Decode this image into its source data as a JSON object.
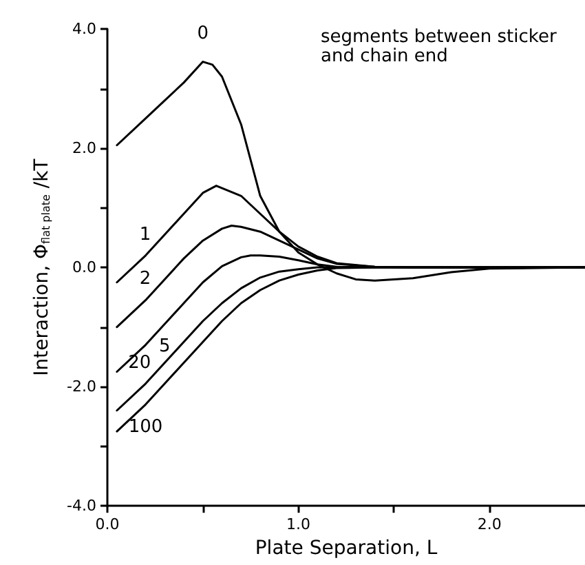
{
  "chart_data": {
    "type": "line",
    "xlabel": "Plate Separation, L",
    "ylabel": "Interaction, Φ$_{flat plate}$ /kT",
    "annotations": [
      "segments between sticker and chain end"
    ],
    "xlim": [
      0,
      2.5
    ],
    "ylim": [
      -4,
      4
    ],
    "xticks": [
      {
        "value": 0,
        "label": "0.0"
      },
      {
        "value": 0.5,
        "label": null
      },
      {
        "value": 1,
        "label": "1.0"
      },
      {
        "value": 1.5,
        "label": null
      },
      {
        "value": 2,
        "label": "2.0"
      }
    ],
    "yticks": [
      {
        "value": -4,
        "label": "-4.0"
      },
      {
        "value": -3,
        "label": null
      },
      {
        "value": -2,
        "label": "-2.0"
      },
      {
        "value": -1,
        "label": null
      },
      {
        "value": 0,
        "label": "0.0"
      },
      {
        "value": 1,
        "label": null
      },
      {
        "value": 2,
        "label": "2.0"
      },
      {
        "value": 3,
        "label": null
      },
      {
        "value": 4,
        "label": "4.0"
      }
    ],
    "grid": false,
    "legend": false,
    "marker": "none",
    "line_style": "solid",
    "series": [
      {
        "name": "0",
        "color": "#000000",
        "x": [
          0.05,
          0.2,
          0.3,
          0.4,
          0.5,
          0.55,
          0.6,
          0.7,
          0.8,
          0.9,
          1.0,
          1.1,
          1.2,
          1.3,
          1.4,
          1.6,
          1.8,
          2.0,
          2.5
        ],
        "values": [
          2.05,
          2.5,
          2.8,
          3.1,
          3.45,
          3.4,
          3.2,
          2.4,
          1.2,
          0.6,
          0.25,
          0.05,
          -0.1,
          -0.2,
          -0.22,
          -0.18,
          -0.08,
          -0.02,
          0
        ]
      },
      {
        "name": "1",
        "color": "#000000",
        "x": [
          0.05,
          0.2,
          0.3,
          0.4,
          0.5,
          0.57,
          0.7,
          0.8,
          0.9,
          1.0,
          1.1,
          1.2,
          1.4,
          1.6,
          2.5
        ],
        "values": [
          -0.25,
          0.2,
          0.55,
          0.9,
          1.25,
          1.37,
          1.2,
          0.9,
          0.6,
          0.35,
          0.18,
          0.07,
          0.01,
          0,
          0
        ]
      },
      {
        "name": "2",
        "color": "#000000",
        "x": [
          0.05,
          0.2,
          0.3,
          0.4,
          0.5,
          0.6,
          0.65,
          0.7,
          0.8,
          0.9,
          1.0,
          1.1,
          1.2,
          1.4,
          1.6,
          2.5
        ],
        "values": [
          -1.0,
          -0.55,
          -0.2,
          0.15,
          0.45,
          0.65,
          0.7,
          0.68,
          0.6,
          0.45,
          0.3,
          0.15,
          0.06,
          0.01,
          0,
          0
        ]
      },
      {
        "name": "5",
        "color": "#000000",
        "x": [
          0.05,
          0.2,
          0.3,
          0.4,
          0.5,
          0.6,
          0.7,
          0.75,
          0.8,
          0.9,
          1.0,
          1.1,
          1.2,
          1.4,
          2.5
        ],
        "values": [
          -1.75,
          -1.3,
          -0.95,
          -0.6,
          -0.25,
          0.02,
          0.17,
          0.2,
          0.2,
          0.18,
          0.12,
          0.05,
          0.01,
          0,
          0
        ]
      },
      {
        "name": "20",
        "color": "#000000",
        "x": [
          0.05,
          0.2,
          0.3,
          0.4,
          0.5,
          0.6,
          0.7,
          0.8,
          0.9,
          1.0,
          1.1,
          1.2,
          2.5
        ],
        "values": [
          -2.4,
          -1.95,
          -1.6,
          -1.25,
          -0.9,
          -0.6,
          -0.35,
          -0.17,
          -0.07,
          -0.03,
          0,
          0,
          0
        ]
      },
      {
        "name": "100",
        "color": "#000000",
        "x": [
          0.05,
          0.2,
          0.3,
          0.4,
          0.5,
          0.6,
          0.7,
          0.8,
          0.9,
          1.0,
          1.1,
          1.2,
          1.4,
          2.5
        ],
        "values": [
          -2.75,
          -2.3,
          -1.95,
          -1.6,
          -1.25,
          -0.9,
          -0.6,
          -0.38,
          -0.22,
          -0.12,
          -0.05,
          -0.01,
          0,
          0
        ]
      }
    ]
  }
}
